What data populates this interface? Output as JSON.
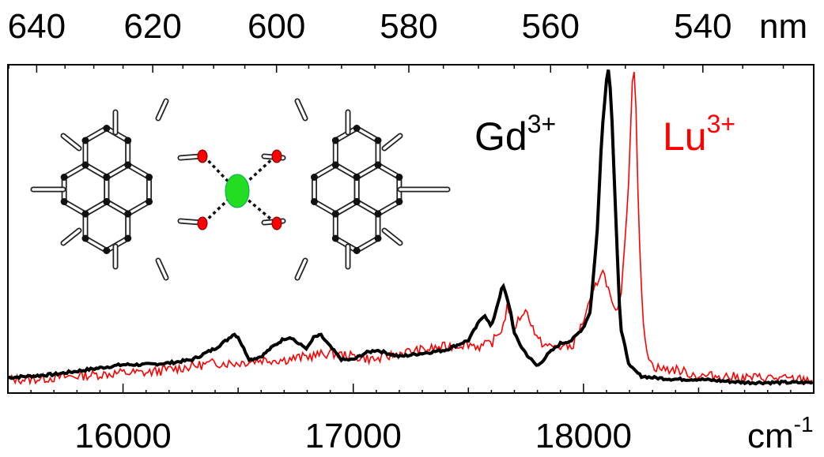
{
  "chart_data": {
    "type": "line",
    "title": "",
    "xlabel": "cm⁻¹",
    "ylabel": "",
    "x_unit": "cm",
    "x_unit_sup": "-1",
    "top_axis_unit": "nm",
    "xlim": [
      15500,
      19000
    ],
    "ylim": [
      0,
      1
    ],
    "grid": false,
    "x_ticks": [
      16000,
      17000,
      18000
    ],
    "x_tick_labels": [
      "16000",
      "17000",
      "18000"
    ],
    "top_ticks_nm": [
      640,
      620,
      600,
      580,
      560,
      540
    ],
    "top_tick_labels": [
      "640",
      "620",
      "600",
      "580",
      "560",
      "540"
    ],
    "series": [
      {
        "name": "Gd3+",
        "label_base": "Gd",
        "label_sup": "3+",
        "color": "#000000",
        "x": [
          15500,
          15600,
          15700,
          15800,
          15900,
          16000,
          16100,
          16200,
          16300,
          16400,
          16450,
          16480,
          16500,
          16520,
          16550,
          16600,
          16650,
          16700,
          16730,
          16760,
          16800,
          16830,
          16860,
          16900,
          16950,
          17000,
          17050,
          17100,
          17150,
          17200,
          17300,
          17400,
          17500,
          17550,
          17570,
          17600,
          17630,
          17650,
          17680,
          17700,
          17730,
          17760,
          17800,
          17850,
          17900,
          17950,
          18000,
          18030,
          18060,
          18080,
          18100,
          18110,
          18120,
          18140,
          18160,
          18200,
          18250,
          18300,
          18400,
          18500,
          18600,
          18700,
          18800,
          18900,
          19000
        ],
        "values": [
          0.045,
          0.05,
          0.055,
          0.065,
          0.075,
          0.085,
          0.085,
          0.09,
          0.1,
          0.135,
          0.16,
          0.18,
          0.17,
          0.14,
          0.1,
          0.11,
          0.14,
          0.165,
          0.17,
          0.15,
          0.135,
          0.17,
          0.175,
          0.14,
          0.1,
          0.1,
          0.12,
          0.13,
          0.12,
          0.11,
          0.12,
          0.13,
          0.16,
          0.22,
          0.24,
          0.2,
          0.28,
          0.33,
          0.26,
          0.18,
          0.14,
          0.11,
          0.08,
          0.12,
          0.15,
          0.16,
          0.2,
          0.25,
          0.5,
          0.8,
          0.96,
          1.0,
          0.9,
          0.55,
          0.2,
          0.08,
          0.05,
          0.045,
          0.04,
          0.04,
          0.035,
          0.03,
          0.03,
          0.03,
          0.03
        ]
      },
      {
        "name": "Lu3+",
        "label_base": "Lu",
        "label_sup": "3+",
        "color": "#ff0000",
        "x": [
          15500,
          15600,
          15700,
          15800,
          15900,
          16000,
          16100,
          16200,
          16300,
          16400,
          16500,
          16600,
          16700,
          16800,
          16900,
          17000,
          17100,
          17200,
          17300,
          17400,
          17500,
          17550,
          17600,
          17650,
          17670,
          17700,
          17740,
          17760,
          17800,
          17850,
          17900,
          17950,
          18000,
          18050,
          18080,
          18100,
          18130,
          18150,
          18170,
          18200,
          18210,
          18220,
          18230,
          18240,
          18260,
          18280,
          18300,
          18350,
          18400,
          18450,
          18500,
          18600,
          18700,
          18800,
          18900,
          19000
        ],
        "values": [
          0.04,
          0.04,
          0.045,
          0.05,
          0.055,
          0.06,
          0.06,
          0.07,
          0.08,
          0.09,
          0.09,
          0.1,
          0.1,
          0.11,
          0.12,
          0.11,
          0.1,
          0.12,
          0.13,
          0.14,
          0.15,
          0.14,
          0.15,
          0.2,
          0.27,
          0.2,
          0.25,
          0.24,
          0.16,
          0.14,
          0.14,
          0.14,
          0.22,
          0.32,
          0.38,
          0.34,
          0.25,
          0.24,
          0.35,
          0.7,
          0.95,
          1.0,
          0.85,
          0.5,
          0.2,
          0.12,
          0.08,
          0.07,
          0.07,
          0.06,
          0.05,
          0.05,
          0.045,
          0.045,
          0.04,
          0.04
        ]
      }
    ]
  },
  "inset": {
    "description_icon": "molecule-icon",
    "central_ion_color": "#22dd22",
    "oxygen_color": "#ff0000"
  }
}
